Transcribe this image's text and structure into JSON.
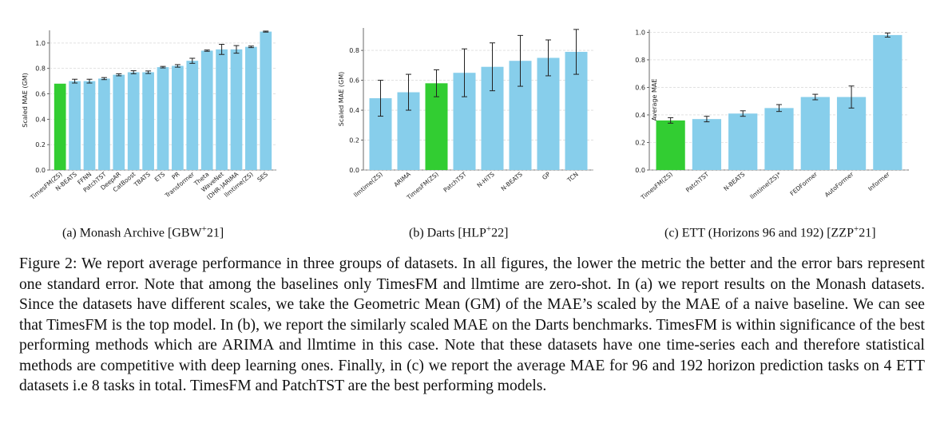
{
  "chart_data": [
    {
      "type": "bar",
      "ylabel": "Scaled MAE (GM)",
      "ylim": [
        0,
        1.1
      ],
      "yticks": [
        0.0,
        0.2,
        0.4,
        0.6,
        0.8,
        1.0
      ],
      "yticklabels": [
        "0.0",
        "0.2",
        "0.4",
        "0.6",
        "0.8",
        "1.0"
      ],
      "categories": [
        "TimesFM(ZS)",
        "N-BEATS",
        "FFNN",
        "PatchTST",
        "DeepAR",
        "CatBoost",
        "TBATS",
        "ETS",
        "PR",
        "Transformer",
        "Theta",
        "WaveNet",
        "(DHR-)ARIMA",
        "llmtime(ZS)",
        "SES"
      ],
      "values": [
        0.68,
        0.7,
        0.7,
        0.72,
        0.75,
        0.77,
        0.77,
        0.81,
        0.82,
        0.86,
        0.94,
        0.95,
        0.95,
        0.97,
        1.09
      ],
      "errors": [
        0.0,
        0.015,
        0.015,
        0.008,
        0.008,
        0.012,
        0.01,
        0.006,
        0.01,
        0.02,
        0.005,
        0.04,
        0.03,
        0.006,
        0.004
      ],
      "highlight_index": 0,
      "bar_color": "#87ceeb",
      "highlight_color": "#32cd32",
      "grid": true,
      "caption_label": "(a) Monash Archive [GBW",
      "caption_sup": "+",
      "caption_tail": "21]"
    },
    {
      "type": "bar",
      "ylabel": "Scaled MAE (GM)",
      "ylim": [
        0,
        0.95
      ],
      "yticks": [
        0.0,
        0.2,
        0.4,
        0.6,
        0.8
      ],
      "yticklabels": [
        "0.0",
        "0.2",
        "0.4",
        "0.6",
        "0.8"
      ],
      "categories": [
        "llmtime(ZS)",
        "ARIMA",
        "TimesFM(ZS)",
        "PatchTST",
        "N-HiTS",
        "N-BEATS",
        "GP",
        "TCN"
      ],
      "values": [
        0.48,
        0.52,
        0.58,
        0.65,
        0.69,
        0.73,
        0.75,
        0.79
      ],
      "errors": [
        0.12,
        0.12,
        0.09,
        0.16,
        0.16,
        0.17,
        0.12,
        0.15
      ],
      "highlight_index": 2,
      "bar_color": "#87ceeb",
      "highlight_color": "#32cd32",
      "grid": true,
      "caption_label": "(b) Darts [HLP",
      "caption_sup": "+",
      "caption_tail": "22]"
    },
    {
      "type": "bar",
      "ylabel": "Average MAE",
      "ylim": [
        0,
        1.02
      ],
      "yticks": [
        0.0,
        0.2,
        0.4,
        0.6,
        0.8,
        1.0
      ],
      "yticklabels": [
        "0.0",
        "0.2",
        "0.4",
        "0.6",
        "0.8",
        "1.0"
      ],
      "categories": [
        "TimesFM(ZS)",
        "PatchTST",
        "N-BEATS",
        "llmtime(ZS)*",
        "FEDFormer",
        "AutoFormer",
        "Informer"
      ],
      "values": [
        0.36,
        0.37,
        0.41,
        0.45,
        0.53,
        0.53,
        0.98
      ],
      "errors": [
        0.02,
        0.02,
        0.02,
        0.025,
        0.02,
        0.08,
        0.015
      ],
      "highlight_index": 0,
      "bar_color": "#87ceeb",
      "highlight_color": "#32cd32",
      "grid": true,
      "caption_label": "(c) ETT (Horizons 96 and 192) [ZZP",
      "caption_sup": "+",
      "caption_tail": "21]"
    }
  ],
  "figure_caption": "Figure 2: We report average performance in three groups of datasets. In all figures, the lower the metric the better and the error bars represent one standard error. Note that among the baselines only TimesFM and llmtime are zero-shot. In (a) we report results on the Monash datasets. Since the datasets have different scales, we take the Geometric Mean (GM) of the MAE’s scaled by the MAE of a naive baseline. We can see that TimesFM is the top model. In (b), we report the similarly scaled MAE on the Darts benchmarks. TimesFM is within significance of the best performing methods which are ARIMA and llmtime in this case. Note that these datasets have one time-series each and therefore statistical methods are competitive with deep learning ones. Finally, in (c) we report the average MAE for 96 and 192 horizon prediction tasks on 4 ETT datasets i.e 8 tasks in total. TimesFM and PatchTST are the best performing models."
}
